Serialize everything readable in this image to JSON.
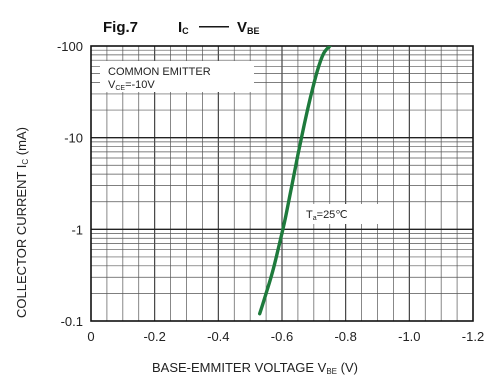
{
  "title": {
    "fig_label": "Fig.7",
    "main_I": "I",
    "main_I_sub": "C",
    "dash": "——",
    "main_V": "V",
    "main_V_sub": "BE"
  },
  "annotations": {
    "line1": "COMMON EMITTER",
    "line2_main": "V",
    "line2_sub": "CE",
    "line2_rest": "=-10V",
    "temp_main": "T",
    "temp_sub": "a",
    "temp_rest": "=25℃"
  },
  "ylabel": {
    "main": "COLLECTOR CURRENT I",
    "sub": "C",
    "rest": " (mA)"
  },
  "xlabel": {
    "main": "BASE-EMMITER VOLTAGE V",
    "sub": "BE",
    "rest": " (V)"
  },
  "chart_data": {
    "type": "line",
    "title": "Ic —— VBE",
    "xlabel": "BASE-EMMITER VOLTAGE VBE (V)",
    "ylabel": "COLLECTOR CURRENT Ic (mA)",
    "xlim": [
      0,
      -1.2
    ],
    "ylim": [
      -0.1,
      -100
    ],
    "y_scale": "log",
    "x_ticks": [
      "0",
      "-0.2",
      "-0.4",
      "-0.6",
      "-0.8",
      "-1.0",
      "-1.2"
    ],
    "x_tick_values": [
      0,
      -0.2,
      -0.4,
      -0.6,
      -0.8,
      -1.0,
      -1.2
    ],
    "y_ticks": [
      "-0.1",
      "-1",
      "-10",
      "-100"
    ],
    "y_tick_values": [
      -0.1,
      -1,
      -10,
      -100
    ],
    "grid": true,
    "line_color": "#1e7a3c",
    "series": [
      {
        "x": [
          -0.53,
          -0.55,
          -0.57,
          -0.59,
          -0.61,
          -0.63,
          -0.65,
          -0.67,
          -0.69,
          -0.71,
          -0.73,
          -0.75
        ],
        "y": [
          -0.12,
          -0.2,
          -0.34,
          -0.65,
          -1.3,
          -2.9,
          -6.5,
          -14,
          -28,
          -52,
          -82,
          -100
        ]
      }
    ]
  }
}
